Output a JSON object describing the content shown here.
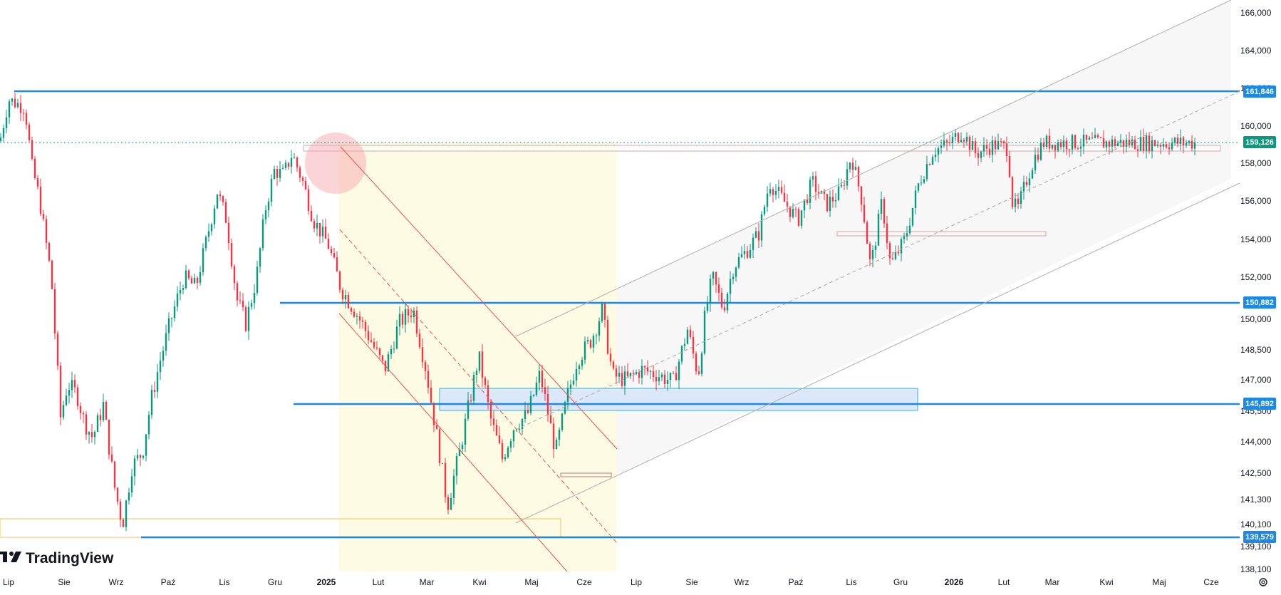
{
  "chart_data": {
    "type": "candlestick",
    "brand": "TradingView",
    "y_axis_ticks": [
      "166,000",
      "164,000",
      "162,000",
      "160,000",
      "158,000",
      "156,000",
      "154,000",
      "152,000",
      "150,000",
      "148,500",
      "147,000",
      "145,500",
      "144,000",
      "142,500",
      "141,300",
      "140,100",
      "139,100",
      "138,100"
    ],
    "x_axis_ticks": [
      {
        "label": "Lip",
        "bold": false
      },
      {
        "label": "Sie",
        "bold": false
      },
      {
        "label": "Wrz",
        "bold": false
      },
      {
        "label": "Paź",
        "bold": false
      },
      {
        "label": "Lis",
        "bold": false
      },
      {
        "label": "Gru",
        "bold": false
      },
      {
        "label": "2025",
        "bold": true
      },
      {
        "label": "Lut",
        "bold": false
      },
      {
        "label": "Mar",
        "bold": false
      },
      {
        "label": "Kwi",
        "bold": false
      },
      {
        "label": "Maj",
        "bold": false
      },
      {
        "label": "Cze",
        "bold": false
      },
      {
        "label": "Lip",
        "bold": false
      },
      {
        "label": "Sie",
        "bold": false
      },
      {
        "label": "Wrz",
        "bold": false
      },
      {
        "label": "Paź",
        "bold": false
      },
      {
        "label": "Lis",
        "bold": false
      },
      {
        "label": "Gru",
        "bold": false
      },
      {
        "label": "2026",
        "bold": true
      },
      {
        "label": "Lut",
        "bold": false
      },
      {
        "label": "Mar",
        "bold": false
      },
      {
        "label": "Kwi",
        "bold": false
      },
      {
        "label": "Maj",
        "bold": false
      },
      {
        "label": "Cze",
        "bold": false
      }
    ],
    "horizontal_levels": [
      {
        "value": "161,846",
        "color": "#2962ff"
      },
      {
        "value": "150,882",
        "color": "#2962ff"
      },
      {
        "value": "145,892",
        "color": "#2962ff"
      },
      {
        "value": "139,579",
        "color": "#2962ff"
      }
    ],
    "last_price": {
      "value": "159,126",
      "color": "#089981"
    },
    "colors": {
      "up": "#089981",
      "down": "#f23645",
      "level": "#1e88e5",
      "channel": "#9e9e9e",
      "down_channel": "#e53935"
    },
    "waypoints": [
      [
        0,
        159.2
      ],
      [
        12,
        161.4
      ],
      [
        35,
        161.0
      ],
      [
        45,
        157.8
      ],
      [
        55,
        156.2
      ],
      [
        72,
        152.0
      ],
      [
        85,
        145.2
      ],
      [
        95,
        146.8
      ],
      [
        108,
        146.3
      ],
      [
        118,
        145.0
      ],
      [
        130,
        144.2
      ],
      [
        145,
        145.8
      ],
      [
        160,
        142.0
      ],
      [
        172,
        140.1
      ],
      [
        185,
        142.8
      ],
      [
        200,
        143.5
      ],
      [
        212,
        146.0
      ],
      [
        225,
        148.0
      ],
      [
        240,
        150.0
      ],
      [
        258,
        152.0
      ],
      [
        275,
        151.5
      ],
      [
        290,
        154.0
      ],
      [
        305,
        156.5
      ],
      [
        318,
        155.0
      ],
      [
        332,
        151.0
      ],
      [
        345,
        149.8
      ],
      [
        360,
        152.0
      ],
      [
        372,
        155.5
      ],
      [
        385,
        157.6
      ],
      [
        398,
        157.4
      ],
      [
        410,
        158.5
      ],
      [
        425,
        157.0
      ],
      [
        440,
        155.0
      ],
      [
        460,
        153.8
      ],
      [
        478,
        151.5
      ],
      [
        500,
        150.3
      ],
      [
        520,
        149.0
      ],
      [
        540,
        147.5
      ],
      [
        560,
        149.8
      ],
      [
        580,
        150.5
      ],
      [
        598,
        147.5
      ],
      [
        612,
        144.5
      ],
      [
        628,
        141.0
      ],
      [
        645,
        143.5
      ],
      [
        672,
        148.2
      ],
      [
        688,
        145.2
      ],
      [
        705,
        143.2
      ],
      [
        722,
        144.8
      ],
      [
        740,
        145.3
      ],
      [
        758,
        147.3
      ],
      [
        780,
        143.5
      ],
      [
        795,
        146.0
      ],
      [
        810,
        148.0
      ],
      [
        830,
        149.0
      ],
      [
        845,
        150.4
      ],
      [
        860,
        147.2
      ],
      [
        880,
        147.0
      ],
      [
        900,
        147.5
      ],
      [
        920,
        147.3
      ],
      [
        945,
        146.9
      ],
      [
        965,
        149.5
      ],
      [
        980,
        147.2
      ],
      [
        990,
        150.3
      ],
      [
        1000,
        152.0
      ],
      [
        1015,
        150.5
      ],
      [
        1030,
        152.6
      ],
      [
        1050,
        153.5
      ],
      [
        1065,
        154.3
      ],
      [
        1080,
        157.0
      ],
      [
        1100,
        156.0
      ],
      [
        1120,
        155.0
      ],
      [
        1140,
        157.0
      ],
      [
        1160,
        155.8
      ],
      [
        1180,
        156.5
      ],
      [
        1195,
        158.4
      ],
      [
        1210,
        156.0
      ],
      [
        1222,
        152.5
      ],
      [
        1238,
        156.0
      ],
      [
        1250,
        152.6
      ],
      [
        1270,
        154.0
      ],
      [
        1290,
        157.0
      ],
      [
        1310,
        158.7
      ],
      [
        1330,
        159.0
      ],
      [
        1350,
        159.7
      ],
      [
        1370,
        158.5
      ],
      [
        1395,
        159.0
      ],
      [
        1415,
        158.8
      ],
      [
        1420,
        156.0
      ],
      [
        1428,
        155.5
      ],
      [
        1440,
        157.0
      ],
      [
        1452,
        158.3
      ],
      [
        1465,
        159.1
      ]
    ]
  }
}
